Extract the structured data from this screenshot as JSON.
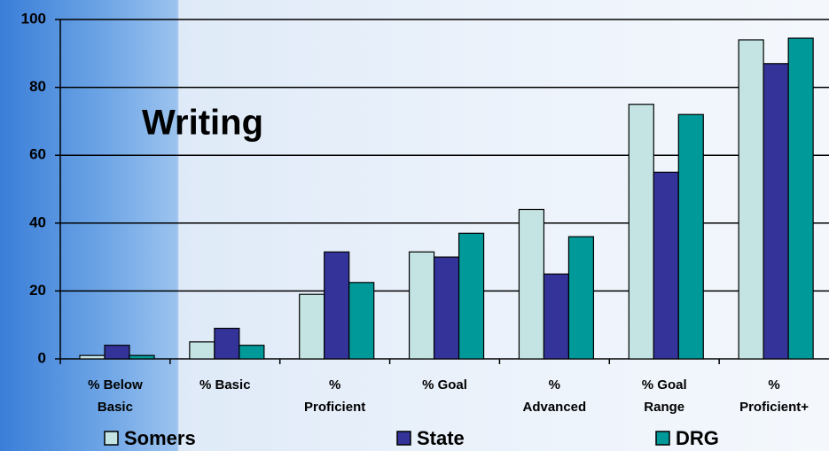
{
  "chart_data": {
    "type": "bar",
    "title": "Writing",
    "categories": [
      "% Below\nBasic",
      "% Basic",
      "%\nProficient",
      "% Goal",
      "%\nAdvanced",
      "% Goal\nRange",
      "%\nProficient+"
    ],
    "series": [
      {
        "name": "Somers",
        "color": "#c4e4e4",
        "values": [
          1,
          5,
          19,
          31.5,
          44,
          75,
          94
        ]
      },
      {
        "name": "State",
        "color": "#333399",
        "values": [
          4,
          9,
          31.5,
          30,
          25,
          55,
          87
        ]
      },
      {
        "name": "DRG",
        "color": "#009999",
        "values": [
          1,
          4,
          22.5,
          37,
          36,
          72,
          94.5
        ]
      }
    ],
    "ylim": [
      0,
      100
    ],
    "yticks": [
      0,
      20,
      40,
      60,
      80,
      100
    ],
    "grid": true
  }
}
